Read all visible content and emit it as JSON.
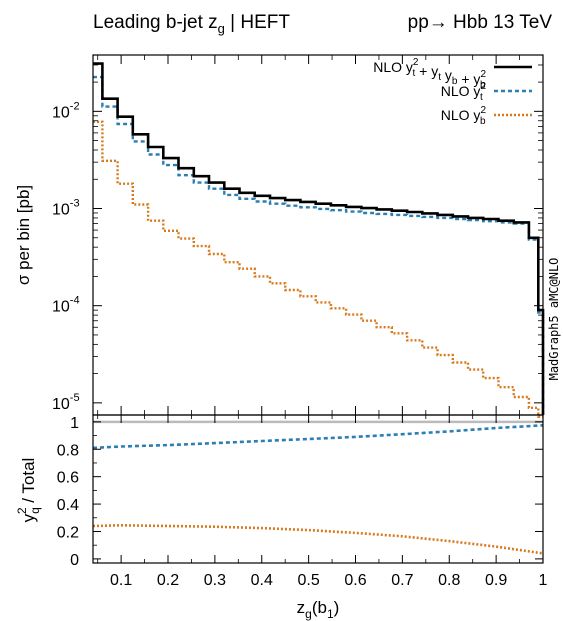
{
  "chart_data": {
    "type": "line",
    "title_left": "Leading b-jet z",
    "title_left_sub": "g",
    "title_left_tail": " | HEFT",
    "title_right": "pp→ Hbb 13 TeV",
    "watermark": "MadGraph5 aMC@NLO",
    "xlabel": "z",
    "xlabel_sub": "g",
    "xlabel_tail": "(b",
    "xlabel_sub2": "1",
    "xlabel_close": ")",
    "xlim": [
      0.04,
      1.0
    ],
    "xticks": [
      "0.1",
      "0.2",
      "0.3",
      "0.4",
      "0.5",
      "0.6",
      "0.7",
      "0.8",
      "0.9",
      "1"
    ],
    "top": {
      "ylabel": "σ per bin [pb]",
      "yscale": "log",
      "ylim": [
        7.5e-06,
        0.038
      ],
      "yticks": [
        {
          "base": "10",
          "exp": "-2",
          "value": 0.01
        },
        {
          "base": "10",
          "exp": "-3",
          "value": 0.001
        },
        {
          "base": "10",
          "exp": "-4",
          "value": 0.0001
        },
        {
          "base": "10",
          "exp": "-5",
          "value": 1e-05
        }
      ],
      "bin_edges": [
        0.04,
        0.06,
        0.0925,
        0.125,
        0.1575,
        0.19,
        0.2225,
        0.255,
        0.2875,
        0.32,
        0.3525,
        0.385,
        0.4175,
        0.45,
        0.4825,
        0.515,
        0.5475,
        0.58,
        0.6125,
        0.645,
        0.6775,
        0.71,
        0.7425,
        0.775,
        0.8075,
        0.84,
        0.8725,
        0.905,
        0.9375,
        0.97,
        0.99,
        1.0
      ],
      "series": [
        {
          "name": "NLO y_t² + y_t y_b + y_b²",
          "legend": {
            "pre": "NLO y",
            "parts": [
              [
                "t",
                "2"
              ],
              " + y",
              [
                "t",
                ""
              ],
              " y",
              [
                "b",
                ""
              ],
              " + y",
              [
                "b",
                "2"
              ]
            ]
          },
          "color": "#000000",
          "dash": "",
          "values": [
            0.031,
            0.0135,
            0.0088,
            0.0058,
            0.0043,
            0.0033,
            0.0026,
            0.00215,
            0.00185,
            0.0016,
            0.00145,
            0.00135,
            0.00128,
            0.00122,
            0.00117,
            0.00112,
            0.00108,
            0.00104,
            0.00101,
            0.00098,
            0.00095,
            0.00092,
            0.00089,
            0.00086,
            0.00083,
            0.0008,
            0.00078,
            0.00075,
            0.00072,
            0.0005,
            9e-05
          ]
        },
        {
          "name": "NLO y_t²",
          "legend": {
            "pre": "NLO y",
            "parts": [
              [
                "t",
                "2"
              ]
            ]
          },
          "color": "#2b7fb3",
          "dash": "4 3",
          "values": [
            0.0225,
            0.0112,
            0.0074,
            0.0049,
            0.0036,
            0.0028,
            0.0022,
            0.00185,
            0.0016,
            0.00138,
            0.00126,
            0.00118,
            0.00112,
            0.00107,
            0.00103,
            0.00099,
            0.00096,
            0.00093,
            0.0009,
            0.00088,
            0.00086,
            0.00084,
            0.00082,
            0.0008,
            0.00078,
            0.00076,
            0.00074,
            0.00072,
            0.0007,
            0.00048,
            8.5e-05
          ]
        },
        {
          "name": "NLO y_b²",
          "legend": {
            "pre": "NLO y",
            "parts": [
              [
                "b",
                "2"
              ]
            ]
          },
          "color": "#d77a1d",
          "dash": "2 2",
          "values": [
            0.0078,
            0.0031,
            0.0018,
            0.0011,
            0.00075,
            0.00059,
            0.00049,
            0.00041,
            0.00034,
            0.00028,
            0.00024,
            0.0002,
            0.00017,
            0.000145,
            0.000125,
            0.000108,
            9.4e-05,
            8.1e-05,
            7e-05,
            6e-05,
            5.2e-05,
            4.4e-05,
            3.7e-05,
            3.1e-05,
            2.6e-05,
            2.2e-05,
            1.8e-05,
            1.45e-05,
            1.15e-05,
            8.9e-06,
            7.2e-06
          ]
        }
      ]
    },
    "bottom": {
      "ylabel_pre": "y",
      "ylabel_sub": "q",
      "ylabel_sup": "2",
      "ylabel_tail": " / Total",
      "ylim": [
        -0.03,
        1.05
      ],
      "yticks": [
        "0",
        "0.2",
        "0.4",
        "0.6",
        "0.8",
        "1"
      ],
      "reference_line": 1.0,
      "reference_color": "#bbbbbb",
      "series": [
        {
          "name": "y_t² / Total",
          "color": "#2b7fb3",
          "dash": "4 3",
          "x": [
            0.04,
            0.1,
            0.2,
            0.3,
            0.4,
            0.5,
            0.6,
            0.7,
            0.8,
            0.9,
            1.0
          ],
          "y": [
            0.81,
            0.82,
            0.83,
            0.845,
            0.86,
            0.875,
            0.89,
            0.91,
            0.93,
            0.955,
            0.975
          ]
        },
        {
          "name": "y_b² / Total",
          "color": "#d77a1d",
          "dash": "2 2",
          "x": [
            0.04,
            0.1,
            0.2,
            0.3,
            0.4,
            0.5,
            0.6,
            0.7,
            0.8,
            0.9,
            1.0
          ],
          "y": [
            0.24,
            0.245,
            0.24,
            0.235,
            0.225,
            0.21,
            0.19,
            0.165,
            0.13,
            0.09,
            0.04
          ]
        }
      ]
    }
  }
}
